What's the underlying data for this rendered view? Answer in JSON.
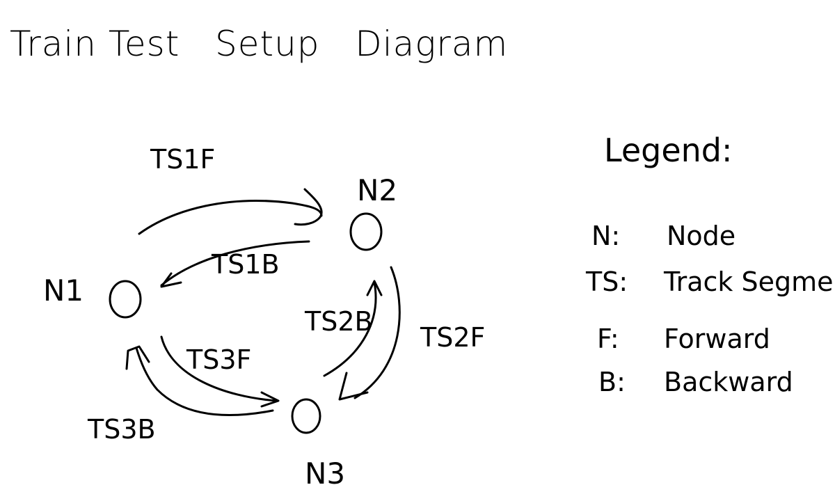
{
  "title": "Train Test   Setup   Diagram",
  "nodes": [
    {
      "id": "n1",
      "label": "N1"
    },
    {
      "id": "n2",
      "label": "N2"
    },
    {
      "id": "n3",
      "label": "N3"
    }
  ],
  "segments": [
    {
      "id": "ts1f",
      "label": "TS1F"
    },
    {
      "id": "ts1b",
      "label": "TS1B"
    },
    {
      "id": "ts2f",
      "label": "TS2F"
    },
    {
      "id": "ts2b",
      "label": "TS2B"
    },
    {
      "id": "ts3f",
      "label": "TS3F"
    },
    {
      "id": "ts3b",
      "label": "TS3B"
    }
  ],
  "legend": {
    "heading": "Legend:",
    "entries": [
      {
        "key": "N:",
        "value": "Node"
      },
      {
        "key": "TS:",
        "value": "Track Segment"
      },
      {
        "key": "F:",
        "value": "Forward"
      },
      {
        "key": "B:",
        "value": "Backward"
      }
    ]
  }
}
